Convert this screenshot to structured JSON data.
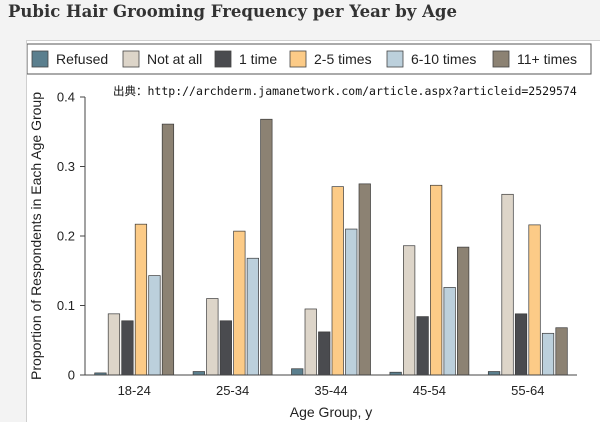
{
  "page": {
    "title": "Pubic Hair Grooming Frequency per Year by Age",
    "source": "出典：http://archderm.jamanetwork.com/article.aspx?articleid=2529574"
  },
  "chart_data": {
    "type": "bar",
    "title": "Pubic Hair Grooming Frequency per Year by Age",
    "xlabel": "Age Group, y",
    "ylabel": "Proportion of Respondents in Each Age Group",
    "ylim": [
      0,
      0.4
    ],
    "yticks": [
      0,
      0.1,
      0.2,
      0.3,
      0.4
    ],
    "ytick_labels": [
      "0",
      "0.1",
      "0.2",
      "0.3",
      "0.4"
    ],
    "grid": false,
    "legend_position": "top",
    "categories": [
      "18-24",
      "25-34",
      "35-44",
      "45-54",
      "55-64"
    ],
    "series": [
      {
        "name": "Refused",
        "color": "#5b7f8e",
        "values": [
          0.003,
          0.005,
          0.009,
          0.004,
          0.005
        ]
      },
      {
        "name": "Not at all",
        "color": "#ddd5c9",
        "values": [
          0.088,
          0.11,
          0.095,
          0.186,
          0.26
        ]
      },
      {
        "name": "1 time",
        "color": "#4a4b4f",
        "values": [
          0.078,
          0.078,
          0.062,
          0.084,
          0.088
        ]
      },
      {
        "name": "2-5 times",
        "color": "#fccb87",
        "values": [
          0.217,
          0.207,
          0.271,
          0.273,
          0.216
        ]
      },
      {
        "name": "6-10 times",
        "color": "#bcd0dc",
        "values": [
          0.143,
          0.168,
          0.21,
          0.126,
          0.06
        ]
      },
      {
        "name": "11+ times",
        "color": "#8c8273",
        "values": [
          0.361,
          0.368,
          0.275,
          0.184,
          0.068
        ]
      }
    ]
  }
}
